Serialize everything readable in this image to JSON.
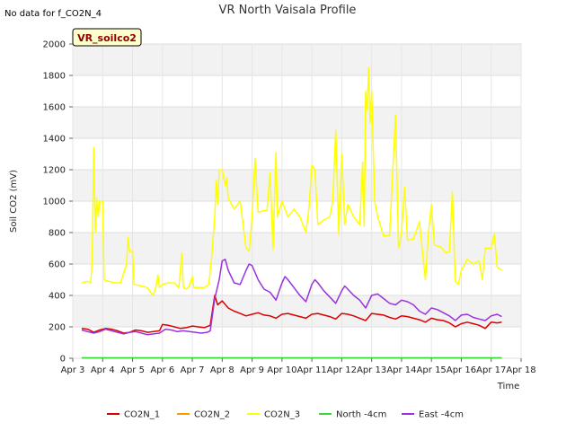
{
  "no_data_text": "No data for f_CO2N_4",
  "chart_data": {
    "type": "line",
    "title": "VR North Vaisala Profile",
    "tag": "VR_soilco2",
    "xlabel": "Time",
    "ylabel": "Soil CO2 (mV)",
    "xlim": [
      3,
      18
    ],
    "ylim": [
      0,
      2000
    ],
    "x_ticks": [
      {
        "value": 3,
        "label": "Apr 3"
      },
      {
        "value": 4,
        "label": "Apr 4"
      },
      {
        "value": 5,
        "label": "Apr 5"
      },
      {
        "value": 6,
        "label": "Apr 6"
      },
      {
        "value": 7,
        "label": "Apr 7"
      },
      {
        "value": 8,
        "label": "Apr 8"
      },
      {
        "value": 9,
        "label": "Apr 9"
      },
      {
        "value": 10,
        "label": "Apr 10"
      },
      {
        "value": 11,
        "label": "Apr 11"
      },
      {
        "value": 12,
        "label": "Apr 12"
      },
      {
        "value": 13,
        "label": "Apr 13"
      },
      {
        "value": 14,
        "label": "Apr 14"
      },
      {
        "value": 15,
        "label": "Apr 15"
      },
      {
        "value": 16,
        "label": "Apr 16"
      },
      {
        "value": 17,
        "label": "Apr 17"
      },
      {
        "value": 18,
        "label": "Apr 18"
      }
    ],
    "y_ticks": [
      0,
      200,
      400,
      600,
      800,
      1000,
      1200,
      1400,
      1600,
      1800,
      2000
    ],
    "grid": true,
    "legend_position": "bottom",
    "series": [
      {
        "name": "CO2N_1",
        "color": "#dd0000",
        "points": [
          [
            3.3,
            190
          ],
          [
            3.5,
            185
          ],
          [
            3.7,
            165
          ],
          [
            3.9,
            180
          ],
          [
            4.1,
            190
          ],
          [
            4.3,
            185
          ],
          [
            4.5,
            175
          ],
          [
            4.7,
            160
          ],
          [
            4.9,
            165
          ],
          [
            5.1,
            180
          ],
          [
            5.3,
            175
          ],
          [
            5.5,
            165
          ],
          [
            5.7,
            170
          ],
          [
            5.9,
            175
          ],
          [
            6.0,
            215
          ],
          [
            6.2,
            210
          ],
          [
            6.4,
            200
          ],
          [
            6.6,
            190
          ],
          [
            6.8,
            195
          ],
          [
            7.0,
            205
          ],
          [
            7.2,
            200
          ],
          [
            7.4,
            195
          ],
          [
            7.6,
            210
          ],
          [
            7.75,
            400
          ],
          [
            7.85,
            340
          ],
          [
            8.0,
            365
          ],
          [
            8.2,
            320
          ],
          [
            8.4,
            300
          ],
          [
            8.6,
            285
          ],
          [
            8.8,
            270
          ],
          [
            9.0,
            280
          ],
          [
            9.2,
            290
          ],
          [
            9.4,
            275
          ],
          [
            9.6,
            270
          ],
          [
            9.8,
            255
          ],
          [
            10.0,
            280
          ],
          [
            10.2,
            285
          ],
          [
            10.4,
            275
          ],
          [
            10.6,
            265
          ],
          [
            10.8,
            255
          ],
          [
            11.0,
            280
          ],
          [
            11.2,
            285
          ],
          [
            11.4,
            275
          ],
          [
            11.6,
            265
          ],
          [
            11.8,
            250
          ],
          [
            12.0,
            285
          ],
          [
            12.2,
            280
          ],
          [
            12.4,
            270
          ],
          [
            12.6,
            255
          ],
          [
            12.8,
            240
          ],
          [
            13.0,
            285
          ],
          [
            13.2,
            280
          ],
          [
            13.4,
            275
          ],
          [
            13.6,
            260
          ],
          [
            13.8,
            250
          ],
          [
            14.0,
            270
          ],
          [
            14.2,
            265
          ],
          [
            14.4,
            255
          ],
          [
            14.6,
            245
          ],
          [
            14.8,
            230
          ],
          [
            15.0,
            255
          ],
          [
            15.2,
            245
          ],
          [
            15.4,
            240
          ],
          [
            15.6,
            225
          ],
          [
            15.8,
            200
          ],
          [
            16.0,
            220
          ],
          [
            16.2,
            230
          ],
          [
            16.4,
            220
          ],
          [
            16.6,
            210
          ],
          [
            16.8,
            190
          ],
          [
            17.0,
            230
          ],
          [
            17.2,
            225
          ],
          [
            17.35,
            230
          ]
        ]
      },
      {
        "name": "CO2N_2",
        "color": "#ff9900",
        "points": [
          [
            3.3,
            3
          ],
          [
            17.35,
            3
          ]
        ]
      },
      {
        "name": "CO2N_3",
        "color": "#ffff00",
        "points": [
          [
            3.3,
            480
          ],
          [
            3.5,
            490
          ],
          [
            3.6,
            480
          ],
          [
            3.65,
            620
          ],
          [
            3.7,
            1340
          ],
          [
            3.75,
            800
          ],
          [
            3.8,
            1020
          ],
          [
            3.85,
            900
          ],
          [
            3.9,
            1000
          ],
          [
            4.0,
            1000
          ],
          [
            4.05,
            500
          ],
          [
            4.2,
            490
          ],
          [
            4.4,
            480
          ],
          [
            4.6,
            480
          ],
          [
            4.8,
            600
          ],
          [
            4.85,
            770
          ],
          [
            4.9,
            680
          ],
          [
            5.0,
            680
          ],
          [
            5.05,
            470
          ],
          [
            5.3,
            460
          ],
          [
            5.5,
            450
          ],
          [
            5.6,
            420
          ],
          [
            5.7,
            400
          ],
          [
            5.8,
            470
          ],
          [
            5.85,
            530
          ],
          [
            5.9,
            450
          ],
          [
            6.0,
            470
          ],
          [
            6.2,
            480
          ],
          [
            6.4,
            480
          ],
          [
            6.55,
            450
          ],
          [
            6.65,
            670
          ],
          [
            6.7,
            450
          ],
          [
            6.8,
            440
          ],
          [
            6.9,
            460
          ],
          [
            7.0,
            520
          ],
          [
            7.05,
            450
          ],
          [
            7.2,
            450
          ],
          [
            7.4,
            450
          ],
          [
            7.55,
            470
          ],
          [
            7.65,
            650
          ],
          [
            7.75,
            900
          ],
          [
            7.8,
            1130
          ],
          [
            7.85,
            980
          ],
          [
            7.9,
            1200
          ],
          [
            8.0,
            1200
          ],
          [
            8.1,
            1100
          ],
          [
            8.15,
            1150
          ],
          [
            8.2,
            1020
          ],
          [
            8.4,
            950
          ],
          [
            8.6,
            1000
          ],
          [
            8.7,
            850
          ],
          [
            8.8,
            700
          ],
          [
            8.9,
            680
          ],
          [
            9.0,
            900
          ],
          [
            9.1,
            1270
          ],
          [
            9.2,
            930
          ],
          [
            9.4,
            940
          ],
          [
            9.5,
            940
          ],
          [
            9.6,
            1180
          ],
          [
            9.7,
            690
          ],
          [
            9.8,
            1310
          ],
          [
            9.85,
            900
          ],
          [
            10.0,
            1000
          ],
          [
            10.2,
            900
          ],
          [
            10.4,
            950
          ],
          [
            10.6,
            900
          ],
          [
            10.8,
            800
          ],
          [
            10.9,
            950
          ],
          [
            11.0,
            1230
          ],
          [
            11.1,
            1200
          ],
          [
            11.2,
            850
          ],
          [
            11.4,
            880
          ],
          [
            11.6,
            900
          ],
          [
            11.7,
            1000
          ],
          [
            11.8,
            1450
          ],
          [
            11.9,
            790
          ],
          [
            12.0,
            1300
          ],
          [
            12.1,
            850
          ],
          [
            12.2,
            980
          ],
          [
            12.4,
            900
          ],
          [
            12.6,
            850
          ],
          [
            12.7,
            1250
          ],
          [
            12.75,
            840
          ],
          [
            12.8,
            1700
          ],
          [
            12.85,
            1580
          ],
          [
            12.9,
            1850
          ],
          [
            12.95,
            1500
          ],
          [
            13.0,
            1700
          ],
          [
            13.1,
            1000
          ],
          [
            13.2,
            900
          ],
          [
            13.4,
            780
          ],
          [
            13.6,
            780
          ],
          [
            13.7,
            1180
          ],
          [
            13.8,
            1550
          ],
          [
            13.9,
            700
          ],
          [
            14.0,
            800
          ],
          [
            14.1,
            1090
          ],
          [
            14.2,
            750
          ],
          [
            14.4,
            760
          ],
          [
            14.6,
            870
          ],
          [
            14.7,
            680
          ],
          [
            14.8,
            500
          ],
          [
            14.9,
            800
          ],
          [
            15.0,
            980
          ],
          [
            15.1,
            720
          ],
          [
            15.3,
            710
          ],
          [
            15.5,
            670
          ],
          [
            15.6,
            680
          ],
          [
            15.7,
            1060
          ],
          [
            15.8,
            490
          ],
          [
            15.9,
            470
          ],
          [
            16.0,
            560
          ],
          [
            16.2,
            630
          ],
          [
            16.4,
            600
          ],
          [
            16.6,
            620
          ],
          [
            16.7,
            500
          ],
          [
            16.8,
            700
          ],
          [
            17.0,
            700
          ],
          [
            17.1,
            790
          ],
          [
            17.2,
            580
          ],
          [
            17.35,
            560
          ]
        ]
      },
      {
        "name": "North -4cm",
        "color": "#33dd33",
        "points": [
          [
            3.3,
            2
          ],
          [
            17.35,
            2
          ]
        ]
      },
      {
        "name": "East -4cm",
        "color": "#9933dd",
        "points": [
          [
            3.3,
            180
          ],
          [
            3.5,
            170
          ],
          [
            3.7,
            160
          ],
          [
            3.9,
            170
          ],
          [
            4.1,
            185
          ],
          [
            4.3,
            175
          ],
          [
            4.5,
            165
          ],
          [
            4.7,
            155
          ],
          [
            4.9,
            165
          ],
          [
            5.1,
            170
          ],
          [
            5.3,
            160
          ],
          [
            5.5,
            150
          ],
          [
            5.7,
            155
          ],
          [
            5.9,
            160
          ],
          [
            6.1,
            185
          ],
          [
            6.3,
            180
          ],
          [
            6.5,
            170
          ],
          [
            6.7,
            175
          ],
          [
            6.9,
            170
          ],
          [
            7.1,
            165
          ],
          [
            7.3,
            160
          ],
          [
            7.5,
            165
          ],
          [
            7.6,
            175
          ],
          [
            7.75,
            380
          ],
          [
            7.9,
            500
          ],
          [
            8.0,
            620
          ],
          [
            8.1,
            630
          ],
          [
            8.2,
            560
          ],
          [
            8.4,
            480
          ],
          [
            8.6,
            470
          ],
          [
            8.8,
            560
          ],
          [
            8.9,
            600
          ],
          [
            9.0,
            590
          ],
          [
            9.2,
            500
          ],
          [
            9.4,
            440
          ],
          [
            9.6,
            420
          ],
          [
            9.8,
            370
          ],
          [
            10.0,
            480
          ],
          [
            10.1,
            520
          ],
          [
            10.2,
            500
          ],
          [
            10.4,
            450
          ],
          [
            10.6,
            400
          ],
          [
            10.8,
            360
          ],
          [
            11.0,
            470
          ],
          [
            11.1,
            500
          ],
          [
            11.2,
            480
          ],
          [
            11.4,
            430
          ],
          [
            11.6,
            390
          ],
          [
            11.8,
            350
          ],
          [
            12.0,
            430
          ],
          [
            12.1,
            460
          ],
          [
            12.2,
            440
          ],
          [
            12.4,
            400
          ],
          [
            12.6,
            370
          ],
          [
            12.8,
            320
          ],
          [
            13.0,
            400
          ],
          [
            13.2,
            410
          ],
          [
            13.4,
            380
          ],
          [
            13.6,
            350
          ],
          [
            13.8,
            340
          ],
          [
            14.0,
            370
          ],
          [
            14.2,
            360
          ],
          [
            14.4,
            340
          ],
          [
            14.6,
            300
          ],
          [
            14.8,
            280
          ],
          [
            15.0,
            320
          ],
          [
            15.2,
            310
          ],
          [
            15.4,
            290
          ],
          [
            15.6,
            270
          ],
          [
            15.8,
            240
          ],
          [
            16.0,
            275
          ],
          [
            16.2,
            280
          ],
          [
            16.4,
            260
          ],
          [
            16.6,
            250
          ],
          [
            16.8,
            240
          ],
          [
            17.0,
            270
          ],
          [
            17.2,
            280
          ],
          [
            17.35,
            265
          ]
        ]
      }
    ]
  }
}
